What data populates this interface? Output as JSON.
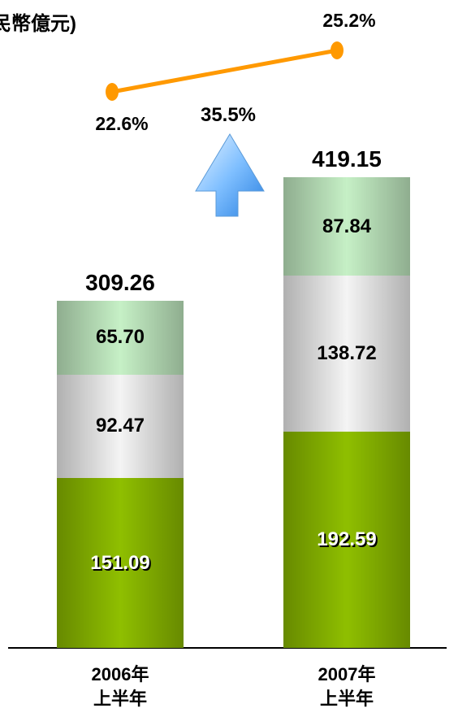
{
  "chart_data": {
    "type": "stacked-bar",
    "title": "民幣億元)",
    "categories": [
      "2006年\n上半年",
      "2007年\n上半年"
    ],
    "series": [
      {
        "color": "#8fbf00",
        "values": [
          151.09,
          192.59
        ]
      },
      {
        "color": "#f4f4f4",
        "values": [
          92.47,
          138.72
        ]
      },
      {
        "color": "#c6f0c6",
        "values": [
          65.7,
          87.84
        ],
        "value_labels": [
          "65.70",
          "87.84"
        ]
      }
    ],
    "totals": [
      309.26,
      419.15
    ],
    "line": {
      "color": "#ff9900",
      "values": [
        22.6,
        25.2
      ],
      "value_labels": [
        "22.6%",
        "25.2%"
      ]
    },
    "annotation": "35.5%"
  }
}
